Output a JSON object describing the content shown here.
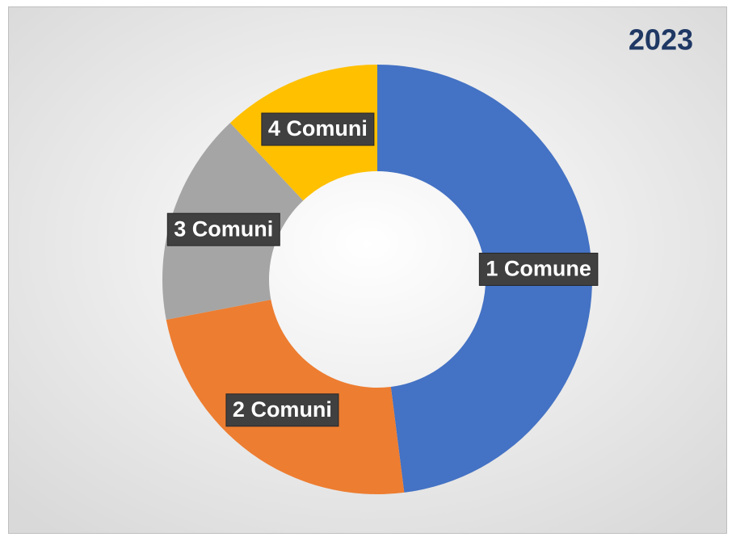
{
  "chart_data": {
    "type": "donut",
    "title": "2023",
    "categories": [
      "1 Comune",
      "2 Comuni",
      "3 Comuni",
      "4 Comuni"
    ],
    "values": [
      48,
      24,
      16,
      12
    ],
    "colors": [
      "#4472c4",
      "#ed7d31",
      "#a5a5a5",
      "#ffc000"
    ]
  }
}
